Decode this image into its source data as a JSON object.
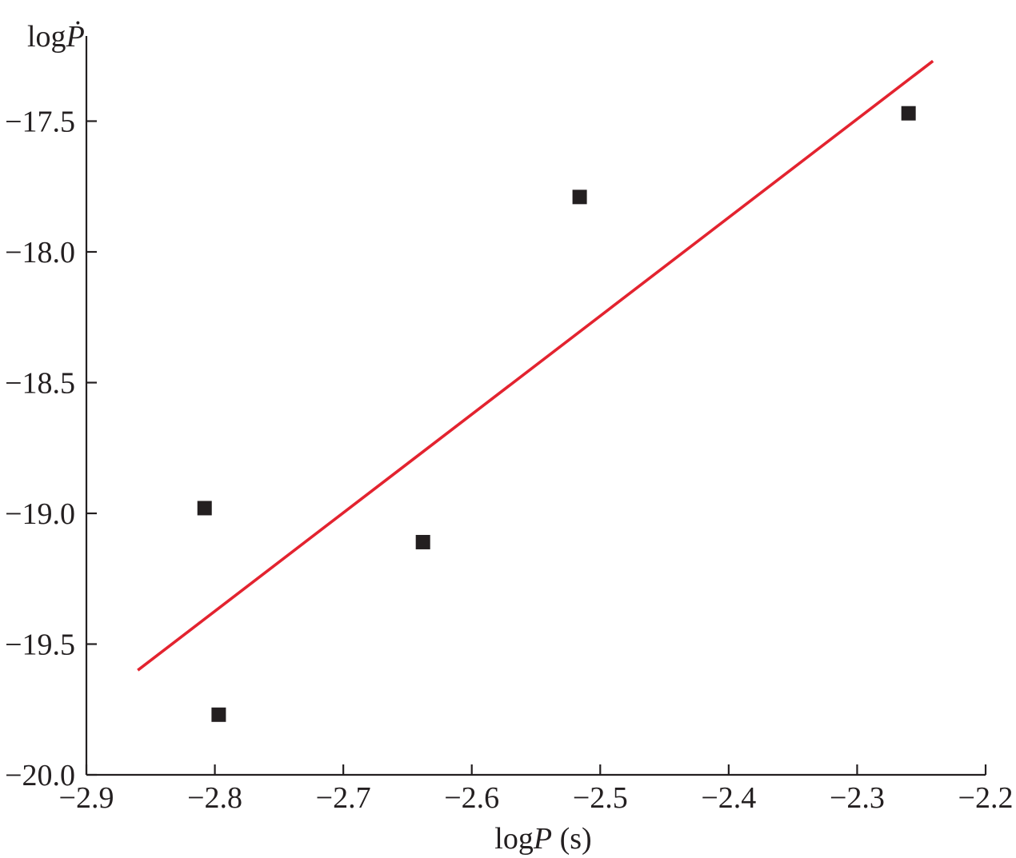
{
  "chart_data": {
    "type": "scatter",
    "title": "",
    "xlabel": {
      "prefix": "log",
      "var": "P",
      "unit": " (s)"
    },
    "ylabel": {
      "prefix": "log",
      "var": "Ṗ"
    },
    "xlim": [
      -2.9,
      -2.2
    ],
    "ylim": [
      -20.0,
      -17.2
    ],
    "xticks": [
      -2.9,
      -2.8,
      -2.7,
      -2.6,
      -2.5,
      -2.4,
      -2.3,
      -2.2
    ],
    "xtick_labels": [
      "−2.9",
      "−2.8",
      "−2.7",
      "−2.6",
      "−2.5",
      "−2.4",
      "−2.3",
      "−2.2"
    ],
    "yticks": [
      -17.5,
      -18.0,
      -18.5,
      -19.0,
      -19.5,
      -20.0
    ],
    "ytick_labels": [
      "−17.5",
      "−18.0",
      "−18.5",
      "−19.0",
      "−19.5",
      "−20.0"
    ],
    "series": [
      {
        "kind": "points",
        "marker": "square",
        "color": "#231f20",
        "points": [
          {
            "x": -2.808,
            "y": -18.98
          },
          {
            "x": -2.797,
            "y": -19.77
          },
          {
            "x": -2.638,
            "y": -19.11
          },
          {
            "x": -2.516,
            "y": -17.79
          },
          {
            "x": -2.26,
            "y": -17.47
          }
        ]
      },
      {
        "kind": "fit-line",
        "color": "#e3232f",
        "points": [
          {
            "x": -2.86,
            "y": -19.6
          },
          {
            "x": -2.241,
            "y": -17.27
          }
        ]
      }
    ],
    "grid": false,
    "legend": "none"
  }
}
